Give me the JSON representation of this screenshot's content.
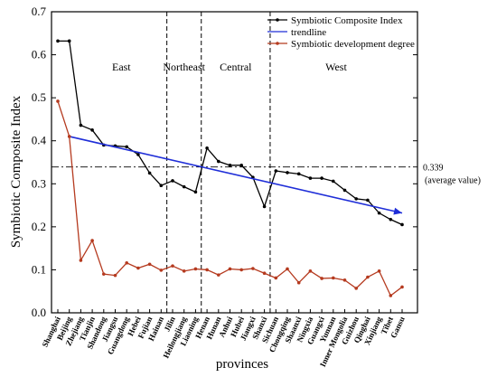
{
  "chart_data": {
    "type": "line",
    "xlabel": "provinces",
    "ylabel": "Symbiotic Composite Index",
    "ylim": [
      0,
      0.7
    ],
    "yticks": [
      0,
      0.1,
      0.2,
      0.3,
      0.4,
      0.5,
      0.6,
      0.7
    ],
    "categories": [
      "Shanghai",
      "Beijing",
      "Zhejiang",
      "Tianjin",
      "Shandong",
      "Jiangsu",
      "Guangdong",
      "Hebei",
      "Fujian",
      "Hainan",
      "Jilin",
      "Heilongjiang",
      "Liaoning",
      "Henan",
      "Hunan",
      "Anhui",
      "Hubei",
      "Jiangxi",
      "Shanxi",
      "Sichuan",
      "Chongqing",
      "Shaanxi",
      "Ningxia",
      "Guangxi",
      "Yunnan",
      "Inner Mongolia",
      "Guizhou",
      "Qinghai",
      "Xinjiang",
      "Tibet",
      "Gansu"
    ],
    "series": [
      {
        "name": "Symbiotic Composite Index",
        "color": "#000000",
        "marker": "dot",
        "values": [
          0.632,
          0.632,
          0.436,
          0.425,
          0.39,
          0.388,
          0.386,
          0.368,
          0.325,
          0.296,
          0.307,
          0.293,
          0.281,
          0.383,
          0.352,
          0.343,
          0.343,
          0.315,
          0.247,
          0.33,
          0.326,
          0.323,
          0.313,
          0.313,
          0.306,
          0.285,
          0.265,
          0.262,
          0.232,
          0.217,
          0.205
        ]
      },
      {
        "name": "trendline",
        "color": "#1f2ed8",
        "marker": "none",
        "line": {
          "x_start": "Beijing",
          "x_end": "Gansu",
          "y_start": 0.41,
          "y_end": 0.232
        }
      },
      {
        "name": "Symbiotic development degree",
        "color": "#b53a1f",
        "marker": "dot",
        "values": [
          0.492,
          0.41,
          0.122,
          0.168,
          0.09,
          0.087,
          0.116,
          0.104,
          0.113,
          0.099,
          0.109,
          0.097,
          0.102,
          0.1,
          0.088,
          0.102,
          0.1,
          0.103,
          0.092,
          0.081,
          0.102,
          0.07,
          0.097,
          0.08,
          0.081,
          0.076,
          0.057,
          0.083,
          0.097,
          0.04,
          0.06
        ]
      }
    ],
    "average": {
      "value": 0.339,
      "label": "0.339",
      "sublabel": "(average value)"
    },
    "regions": [
      {
        "label": "East",
        "from": "Shanghai",
        "to": "Hainan"
      },
      {
        "label": "Northeast",
        "from": "Jilin",
        "to": "Liaoning"
      },
      {
        "label": "Central",
        "from": "Henan",
        "to": "Shanxi"
      },
      {
        "label": "West",
        "from": "Sichuan",
        "to": "Gansu"
      }
    ],
    "legend_position": "top-right",
    "grid": false
  }
}
